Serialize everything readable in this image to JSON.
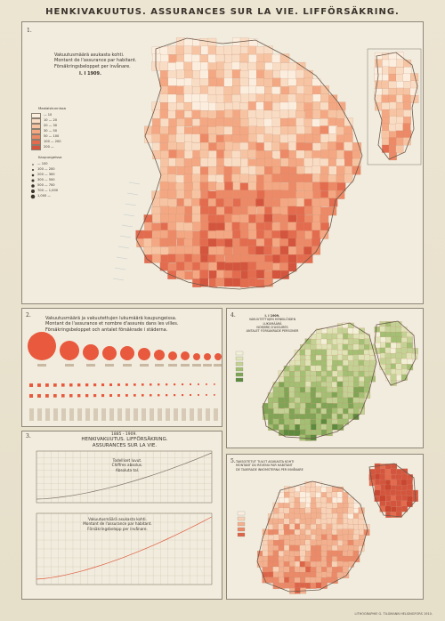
{
  "sheet_title": "HENKIVAKUUTUS.   ASSURANCES SUR LA VIE.   LIFFÖRSÄKRING.",
  "map1": {
    "number": "1.",
    "heading": [
      "Vakuutusmäärä asukasta kohti.",
      "Montant de l'assurance par habitant.",
      "Försäkringsbeloppet per invånare."
    ],
    "date": "I. I 1909.",
    "legend_title": "Maalaiskunnissa",
    "legend_items": [
      "— 10",
      "10 — 20",
      "20 — 30",
      "30 — 50",
      "50 — 100",
      "100 — 200",
      "200 —"
    ],
    "colors": [
      "#fbeede",
      "#f9dcc4",
      "#f6c4a2",
      "#f3a883",
      "#ec8a67",
      "#e36c4f",
      "#d4553d"
    ],
    "cities_title": "Kaupungeissa",
    "cities_items": [
      "— 100",
      "100 — 200",
      "200 — 300",
      "300 — 500",
      "500 — 700",
      "700 — 1,000",
      "1,000 —"
    ]
  },
  "cities_chart": {
    "number": "2.",
    "heading": [
      "Vakuutusmäärä ja vakuutettujen lukumäärä kaupungeissa.",
      "Montant de l'assurance et nombre d'assurés dans les villes.",
      "Försäkringsbeloppet och antalet försäkrade i städerna."
    ],
    "bubble_count": 12
  },
  "growth_chart": {
    "number": "3.",
    "period": "1885 - 1909.",
    "heading": [
      "HENKIVAKUUTUS.   LIFFÖRSÄKRING.",
      "ASSURANCES SUR LA VIE."
    ],
    "upper_label": [
      "Todelliset luvut.",
      "Chiffres absolus.",
      "Absoluta tal."
    ],
    "lower_label": [
      "Vakuutusmäärä asukasta kohti.",
      "Montant de l'assurance par habitant.",
      "Försäkringsbelopp per invånare."
    ]
  },
  "map4": {
    "number": "4.",
    "date": "I. I 1909.",
    "heading": [
      "VAKUUTETTUJEN HENKILÖIDEN LUKUMÄÄRÄ",
      "NOMBRE D'ASSURÉS",
      "ANTALET FÖRSÄKRADE PERSONER"
    ],
    "colors": [
      "#f3f0d8",
      "#dfe3b6",
      "#c3d294",
      "#a2bf73",
      "#7fa455",
      "#5c8a3e"
    ]
  },
  "map5": {
    "number": "5.",
    "heading": [
      "TAKSOITETUT TULOT ASUKASTA KOHTI",
      "MONTANT DU REVENU PAR HABITANT",
      "DE TAXERADE INKOMSTERNA PER INVÅNARE"
    ],
    "colors": [
      "#fbeede",
      "#f7d2b6",
      "#f2b08e",
      "#ea8a68",
      "#dc6448"
    ]
  },
  "footer": "LITHOGRAPHIE G. TILGMANN HELSINGFORS 1910."
}
